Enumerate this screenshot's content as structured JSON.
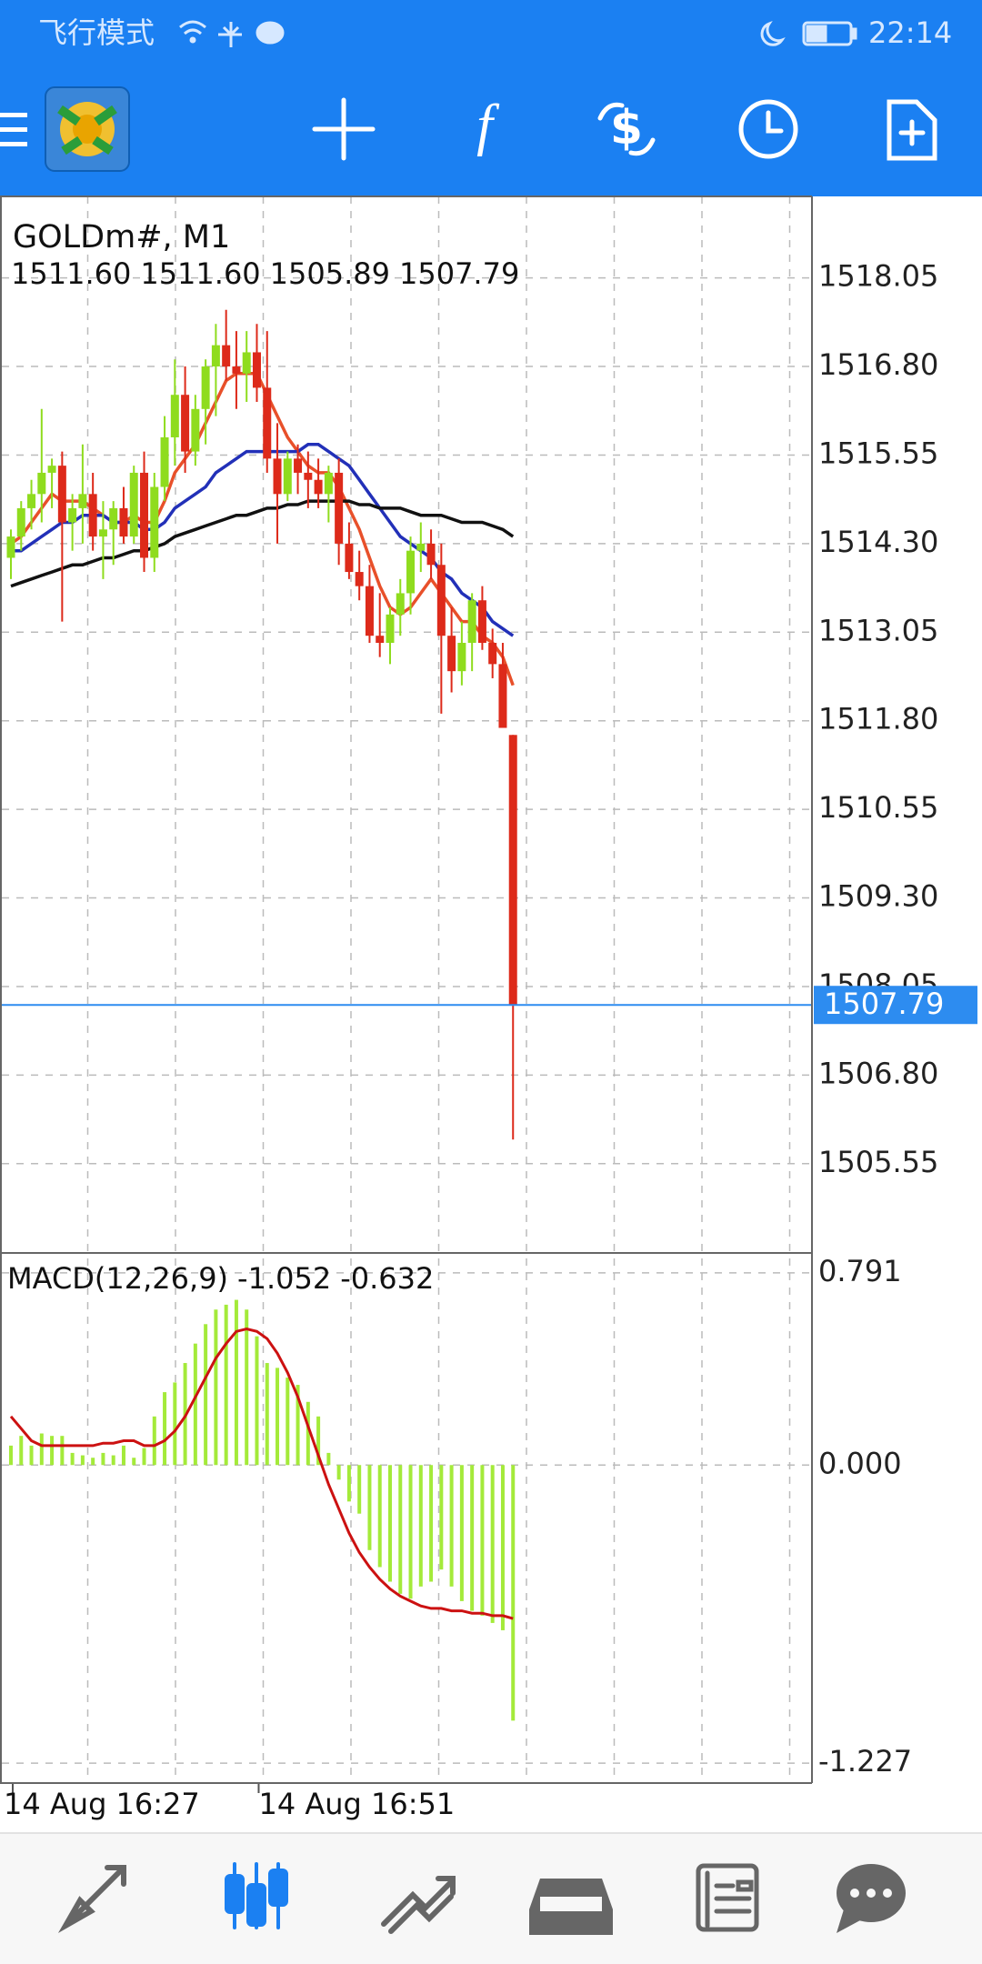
{
  "status_bar": {
    "mode": "飞行模式",
    "time": "22:14"
  },
  "chart_data": [
    {
      "type": "candlestick",
      "title": "GOLDm#, M1",
      "ohlc_labels": [
        "1511.60",
        "1511.60",
        "1505.89",
        "1507.79"
      ],
      "categories": [
        "14 Aug 16:27",
        null,
        null,
        null,
        null,
        null,
        null,
        null,
        null,
        null,
        null,
        null,
        null,
        null,
        null,
        null,
        null,
        null,
        null,
        null,
        null,
        null,
        null,
        null,
        "14 Aug 16:51",
        null,
        null,
        null,
        null,
        null,
        null,
        null,
        null,
        null,
        null,
        null,
        null,
        null,
        null,
        null,
        null,
        null,
        null,
        null,
        null,
        null,
        null,
        null,
        null,
        null
      ],
      "candles": [
        [
          1514.1,
          1514.5,
          1513.8,
          1514.4
        ],
        [
          1514.4,
          1514.9,
          1514.2,
          1514.8
        ],
        [
          1514.8,
          1515.2,
          1514.5,
          1515.0
        ],
        [
          1515.0,
          1516.2,
          1514.6,
          1515.3
        ],
        [
          1515.3,
          1515.5,
          1514.8,
          1515.4
        ],
        [
          1515.4,
          1515.6,
          1513.2,
          1514.6
        ],
        [
          1514.6,
          1515.0,
          1514.2,
          1514.8
        ],
        [
          1514.8,
          1515.7,
          1514.3,
          1515.0
        ],
        [
          1515.0,
          1515.3,
          1514.2,
          1514.4
        ],
        [
          1514.4,
          1514.9,
          1513.8,
          1514.5
        ],
        [
          1514.5,
          1514.9,
          1514.0,
          1514.8
        ],
        [
          1514.8,
          1515.1,
          1514.3,
          1514.4
        ],
        [
          1514.4,
          1515.4,
          1514.3,
          1515.3
        ],
        [
          1515.3,
          1515.6,
          1513.9,
          1514.1
        ],
        [
          1514.1,
          1515.3,
          1513.9,
          1515.1
        ],
        [
          1515.1,
          1516.1,
          1514.9,
          1515.8
        ],
        [
          1515.8,
          1516.9,
          1515.4,
          1516.4
        ],
        [
          1516.4,
          1516.8,
          1515.3,
          1515.6
        ],
        [
          1515.6,
          1516.4,
          1515.4,
          1516.2
        ],
        [
          1516.2,
          1516.9,
          1515.7,
          1516.8
        ],
        [
          1516.8,
          1517.4,
          1516.1,
          1517.1
        ],
        [
          1517.1,
          1517.6,
          1516.6,
          1516.8
        ],
        [
          1516.8,
          1517.3,
          1516.2,
          1516.7
        ],
        [
          1516.7,
          1517.3,
          1516.3,
          1517.0
        ],
        [
          1517.0,
          1517.4,
          1516.3,
          1516.5
        ],
        [
          1516.5,
          1517.3,
          1515.3,
          1515.5
        ],
        [
          1515.5,
          1516.0,
          1514.3,
          1515.0
        ],
        [
          1515.0,
          1515.6,
          1514.9,
          1515.5
        ],
        [
          1515.5,
          1515.7,
          1515.0,
          1515.3
        ],
        [
          1515.3,
          1515.6,
          1514.8,
          1515.2
        ],
        [
          1515.2,
          1515.5,
          1514.8,
          1515.0
        ],
        [
          1515.0,
          1515.4,
          1514.6,
          1515.3
        ],
        [
          1515.3,
          1515.5,
          1514.0,
          1514.3
        ],
        [
          1514.3,
          1514.6,
          1513.8,
          1513.9
        ],
        [
          1513.9,
          1514.2,
          1513.5,
          1513.7
        ],
        [
          1513.7,
          1514.0,
          1512.9,
          1513.0
        ],
        [
          1513.0,
          1513.6,
          1512.7,
          1512.9
        ],
        [
          1512.9,
          1513.4,
          1512.6,
          1513.3
        ],
        [
          1513.3,
          1513.8,
          1513.0,
          1513.6
        ],
        [
          1513.6,
          1514.4,
          1513.3,
          1514.2
        ],
        [
          1514.2,
          1514.6,
          1513.9,
          1514.3
        ],
        [
          1514.3,
          1514.5,
          1513.8,
          1514.0
        ],
        [
          1514.0,
          1514.3,
          1511.9,
          1513.0
        ],
        [
          1513.0,
          1513.4,
          1512.2,
          1512.5
        ],
        [
          1512.5,
          1513.2,
          1512.3,
          1512.9
        ],
        [
          1512.9,
          1513.6,
          1512.5,
          1513.5
        ],
        [
          1513.5,
          1513.7,
          1512.8,
          1512.9
        ],
        [
          1512.9,
          1513.1,
          1512.4,
          1512.6
        ],
        [
          1512.6,
          1512.9,
          1511.7,
          1511.7
        ],
        [
          1511.6,
          1511.6,
          1505.89,
          1507.79
        ]
      ],
      "up_color": "#8fdc1e",
      "down_color": "#dd2a1a",
      "current_price_color": "#2d8cf0",
      "moving_averages": [
        {
          "color": "#e8502a",
          "values": [
            1514.3,
            1514.4,
            1514.6,
            1514.8,
            1515.0,
            1514.9,
            1514.9,
            1514.9,
            1514.8,
            1514.7,
            1514.6,
            1514.6,
            1514.7,
            1514.6,
            1514.6,
            1514.9,
            1515.3,
            1515.5,
            1515.7,
            1516.0,
            1516.3,
            1516.6,
            1516.7,
            1516.7,
            1516.7,
            1516.4,
            1516.1,
            1515.8,
            1515.6,
            1515.4,
            1515.3,
            1515.3,
            1515.1,
            1514.8,
            1514.5,
            1514.1,
            1513.7,
            1513.4,
            1513.3,
            1513.4,
            1513.6,
            1513.8,
            1513.6,
            1513.4,
            1513.2,
            1513.2,
            1513.0,
            1512.9,
            1512.7,
            1512.3
          ]
        },
        {
          "color": "#2230b8",
          "values": [
            1514.2,
            1514.2,
            1514.3,
            1514.4,
            1514.5,
            1514.6,
            1514.6,
            1514.7,
            1514.7,
            1514.7,
            1514.6,
            1514.6,
            1514.6,
            1514.5,
            1514.5,
            1514.6,
            1514.8,
            1514.9,
            1515.0,
            1515.1,
            1515.3,
            1515.4,
            1515.5,
            1515.6,
            1515.6,
            1515.6,
            1515.6,
            1515.6,
            1515.6,
            1515.7,
            1515.7,
            1515.6,
            1515.5,
            1515.4,
            1515.2,
            1515.0,
            1514.8,
            1514.6,
            1514.4,
            1514.3,
            1514.2,
            1514.1,
            1513.9,
            1513.8,
            1513.6,
            1513.5,
            1513.4,
            1513.2,
            1513.1,
            1513.0
          ]
        },
        {
          "color": "#111111",
          "values": [
            1513.7,
            1513.75,
            1513.8,
            1513.85,
            1513.9,
            1513.95,
            1514.0,
            1514.0,
            1514.05,
            1514.1,
            1514.1,
            1514.15,
            1514.2,
            1514.2,
            1514.25,
            1514.3,
            1514.4,
            1514.45,
            1514.5,
            1514.55,
            1514.6,
            1514.65,
            1514.7,
            1514.7,
            1514.75,
            1514.8,
            1514.8,
            1514.85,
            1514.85,
            1514.9,
            1514.9,
            1514.9,
            1514.9,
            1514.9,
            1514.85,
            1514.85,
            1514.8,
            1514.8,
            1514.8,
            1514.75,
            1514.7,
            1514.7,
            1514.7,
            1514.65,
            1514.6,
            1514.6,
            1514.6,
            1514.55,
            1514.5,
            1514.4
          ]
        }
      ],
      "ylim": [
        1504.29,
        1519.2
      ],
      "yticks": [
        {
          "value": 1518.05,
          "label": "1518.05"
        },
        {
          "value": 1516.8,
          "label": "1516.80"
        },
        {
          "value": 1515.55,
          "label": "1515.55"
        },
        {
          "value": 1514.3,
          "label": "1514.30"
        },
        {
          "value": 1513.05,
          "label": "1513.05"
        },
        {
          "value": 1511.8,
          "label": "1511.80"
        },
        {
          "value": 1510.55,
          "label": "1510.55"
        },
        {
          "value": 1509.3,
          "label": "1509.30"
        },
        {
          "value": 1508.05,
          "label": "1508.05"
        },
        {
          "value": 1506.8,
          "label": "1506.80"
        },
        {
          "value": 1505.55,
          "label": "1505.55"
        }
      ],
      "grid": true
    },
    {
      "type": "macd",
      "title": "MACD(12,26,9)",
      "histogram": [
        0.08,
        0.12,
        0.08,
        0.13,
        0.12,
        0.12,
        0.05,
        0.04,
        0.03,
        0.05,
        0.04,
        0.08,
        0.03,
        0.07,
        0.2,
        0.3,
        0.34,
        0.42,
        0.5,
        0.58,
        0.64,
        0.66,
        0.68,
        0.64,
        0.53,
        0.42,
        0.4,
        0.36,
        0.33,
        0.26,
        0.2,
        0.05,
        -0.06,
        -0.15,
        -0.2,
        -0.35,
        -0.42,
        -0.48,
        -0.53,
        -0.55,
        -0.5,
        -0.48,
        -0.43,
        -0.5,
        -0.56,
        -0.6,
        -0.62,
        -0.65,
        -0.68,
        -1.052
      ],
      "signal": [
        0.2,
        0.15,
        0.1,
        0.08,
        0.08,
        0.08,
        0.08,
        0.08,
        0.08,
        0.09,
        0.09,
        0.1,
        0.1,
        0.08,
        0.08,
        0.1,
        0.14,
        0.2,
        0.28,
        0.36,
        0.44,
        0.5,
        0.55,
        0.56,
        0.55,
        0.52,
        0.46,
        0.38,
        0.28,
        0.16,
        0.04,
        -0.08,
        -0.18,
        -0.28,
        -0.36,
        -0.42,
        -0.47,
        -0.51,
        -0.54,
        -0.56,
        -0.58,
        -0.59,
        -0.59,
        -0.6,
        -0.6,
        -0.61,
        -0.61,
        -0.62,
        -0.62,
        -0.632
      ],
      "histogram_color": "#a4ea3a",
      "signal_color": "#cc1111",
      "ylim": [
        -1.309,
        0.873
      ],
      "yticks": [
        0.791,
        {
          "value": 0,
          "label": "0.000"
        },
        -1.227
      ],
      "grid": true
    }
  ]
}
